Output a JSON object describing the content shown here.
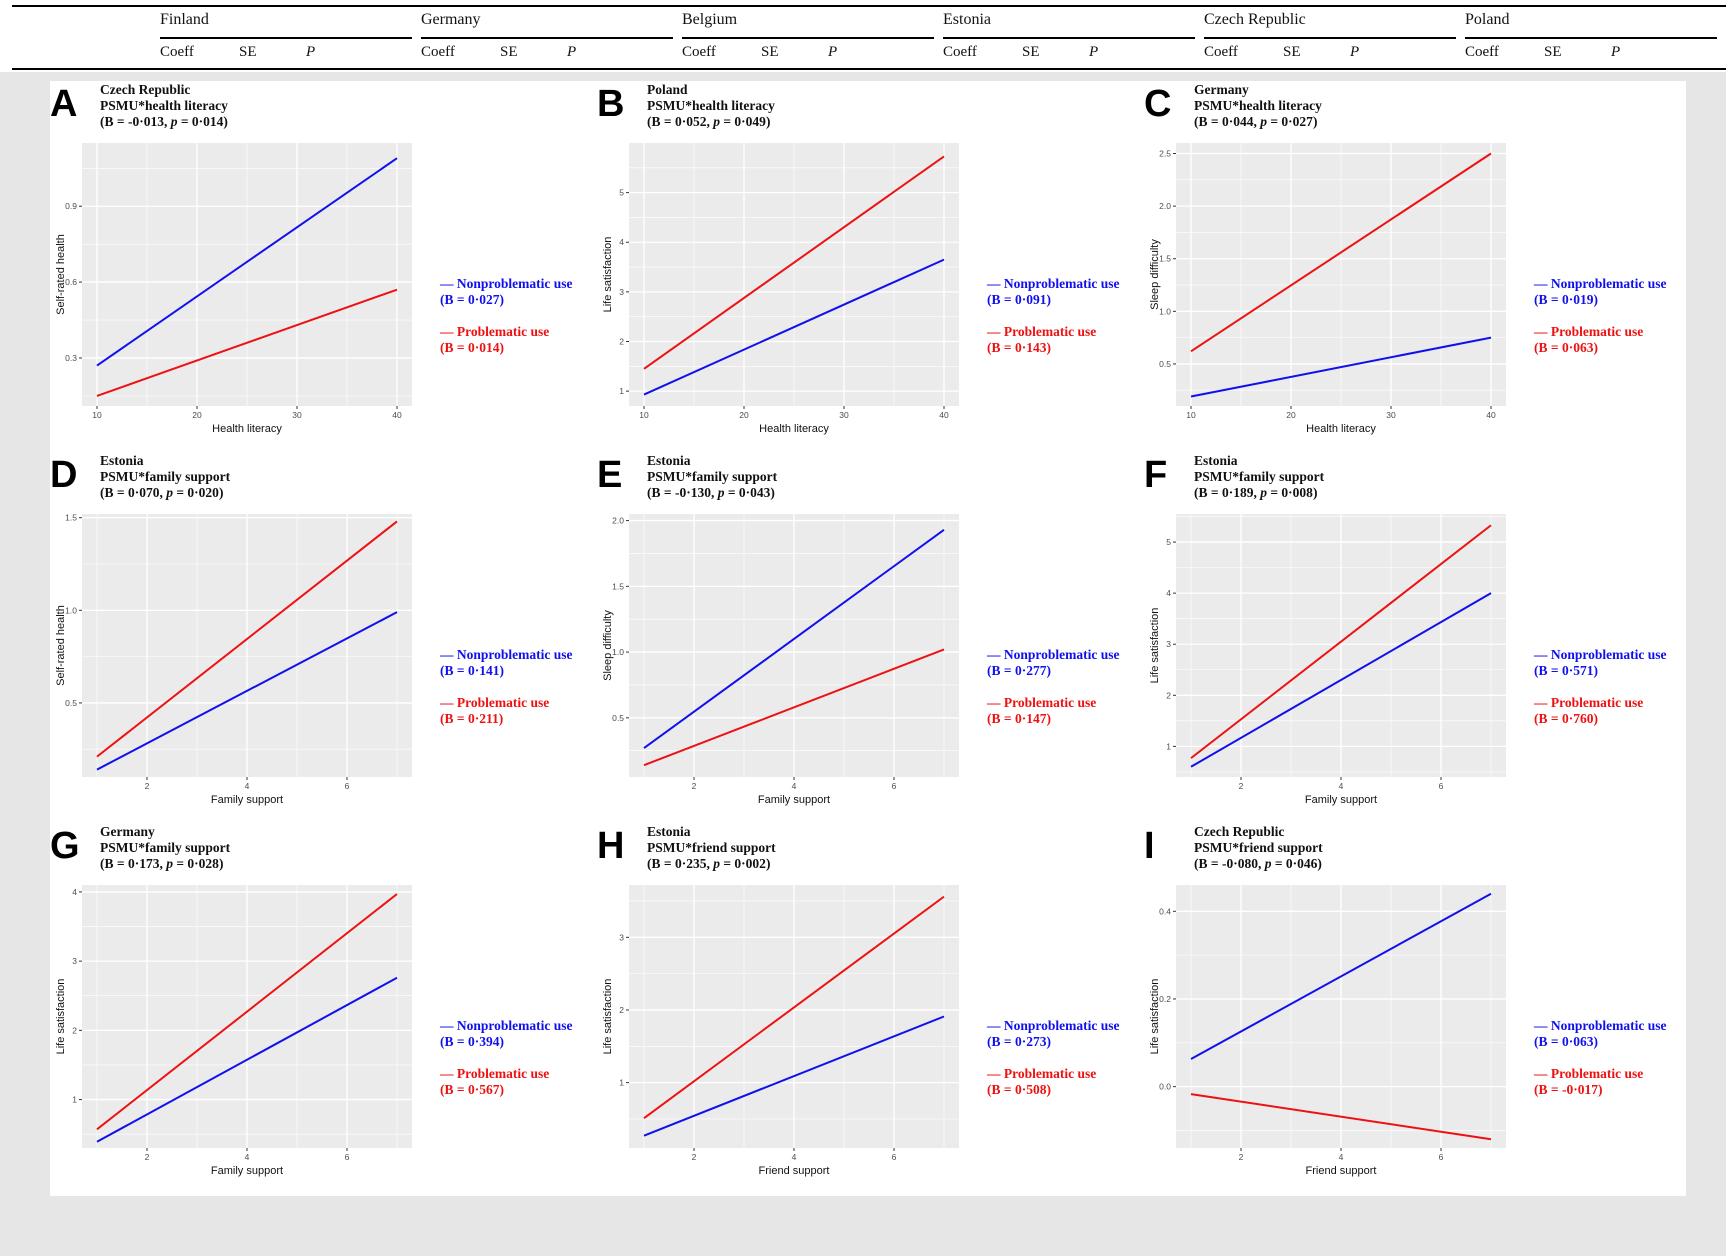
{
  "table": {
    "countries": [
      {
        "name": "Finland"
      },
      {
        "name": "Germany"
      },
      {
        "name": "Belgium"
      },
      {
        "name": "Estonia"
      },
      {
        "name": "Czech Republic"
      },
      {
        "name": "Poland"
      }
    ],
    "columns": [
      "Coeff",
      "SE",
      "P"
    ]
  },
  "colors": {
    "nonproblematic": "#1010ee",
    "problematic": "#ee1111",
    "plot_bg": "#ebebeb",
    "grid": "#ffffff",
    "tick_text": "#4d4d4d"
  },
  "legend": {
    "nonproblematic": "— Nonproblematic use",
    "problematic": "— Problematic use"
  },
  "chart_data": [
    {
      "letter": "A",
      "type": "line",
      "country": "Czech Republic",
      "interaction": "PSMU*health literacy",
      "stat_b": "-0·013",
      "stat_p": "0·014",
      "xlabel": "Health literacy",
      "ylabel": "Self-rated health",
      "xlim": [
        8.5,
        41.5
      ],
      "ylim": [
        0.11,
        1.15
      ],
      "xticks": [
        10,
        20,
        30,
        40
      ],
      "xtick_labels": [
        "10",
        "20",
        "30",
        "40"
      ],
      "yticks": [
        0.3,
        0.6,
        0.9
      ],
      "ytick_labels": [
        "0.3",
        "0.6",
        "0.9"
      ],
      "series": [
        {
          "name": "Nonproblematic use",
          "key": "nonproblematic",
          "b": "0·027",
          "x": [
            10,
            40
          ],
          "y": [
            0.27,
            1.09
          ]
        },
        {
          "name": "Problematic use",
          "key": "problematic",
          "b": "0·014",
          "x": [
            10,
            40
          ],
          "y": [
            0.15,
            0.57
          ]
        }
      ]
    },
    {
      "letter": "B",
      "type": "line",
      "country": "Poland",
      "interaction": "PSMU*health literacy",
      "stat_b": "0·052",
      "stat_p": "0·049",
      "xlabel": "Health literacy",
      "ylabel": "Life satisfaction",
      "xlim": [
        8.5,
        41.5
      ],
      "ylim": [
        0.7,
        6.0
      ],
      "xticks": [
        10,
        20,
        30,
        40
      ],
      "xtick_labels": [
        "10",
        "20",
        "30",
        "40"
      ],
      "yticks": [
        1,
        2,
        3,
        4,
        5
      ],
      "ytick_labels": [
        "1",
        "2",
        "3",
        "4",
        "5"
      ],
      "series": [
        {
          "name": "Nonproblematic use",
          "key": "nonproblematic",
          "b": "0·091",
          "x": [
            10,
            40
          ],
          "y": [
            0.93,
            3.65
          ]
        },
        {
          "name": "Problematic use",
          "key": "problematic",
          "b": "0·143",
          "x": [
            10,
            40
          ],
          "y": [
            1.45,
            5.73
          ]
        }
      ]
    },
    {
      "letter": "C",
      "type": "line",
      "country": "Germany",
      "interaction": "PSMU*health literacy",
      "stat_b": "0·044",
      "stat_p": "0·027",
      "xlabel": "Health literacy",
      "ylabel": "Sleep difficulty",
      "xlim": [
        8.5,
        41.5
      ],
      "ylim": [
        0.1,
        2.6
      ],
      "xticks": [
        10,
        20,
        30,
        40
      ],
      "xtick_labels": [
        "10",
        "20",
        "30",
        "40"
      ],
      "yticks": [
        0.5,
        1.0,
        1.5,
        2.0,
        2.5
      ],
      "ytick_labels": [
        "0.5",
        "1.0",
        "1.5",
        "2.0",
        "2.5"
      ],
      "series": [
        {
          "name": "Nonproblematic use",
          "key": "nonproblematic",
          "b": "0·019",
          "x": [
            10,
            40
          ],
          "y": [
            0.19,
            0.75
          ]
        },
        {
          "name": "Problematic use",
          "key": "problematic",
          "b": "0·063",
          "x": [
            10,
            40
          ],
          "y": [
            0.62,
            2.5
          ]
        }
      ]
    },
    {
      "letter": "D",
      "type": "line",
      "country": "Estonia",
      "interaction": "PSMU*family support",
      "stat_b": "0·070",
      "stat_p": "0·020",
      "xlabel": "Family support",
      "ylabel": "Self-rated health",
      "xlim": [
        0.7,
        7.3
      ],
      "ylim": [
        0.1,
        1.52
      ],
      "xticks": [
        2,
        4,
        6
      ],
      "xtick_labels": [
        "2",
        "4",
        "6"
      ],
      "yticks": [
        0.5,
        1.0,
        1.5
      ],
      "ytick_labels": [
        "0.5",
        "1.0",
        "1.5"
      ],
      "series": [
        {
          "name": "Nonproblematic use",
          "key": "nonproblematic",
          "b": "0·141",
          "x": [
            1,
            7
          ],
          "y": [
            0.14,
            0.99
          ]
        },
        {
          "name": "Problematic use",
          "key": "problematic",
          "b": "0·211",
          "x": [
            1,
            7
          ],
          "y": [
            0.21,
            1.48
          ]
        }
      ]
    },
    {
      "letter": "E",
      "type": "line",
      "country": "Estonia",
      "interaction": "PSMU*family support",
      "stat_b": "-0·130",
      "stat_p": "0·043",
      "xlabel": "Family support",
      "ylabel": "Sleep difficulty",
      "xlim": [
        0.7,
        7.3
      ],
      "ylim": [
        0.05,
        2.05
      ],
      "xticks": [
        2,
        4,
        6
      ],
      "xtick_labels": [
        "2",
        "4",
        "6"
      ],
      "yticks": [
        0.5,
        1.0,
        1.5,
        2.0
      ],
      "ytick_labels": [
        "0.5",
        "1.0",
        "1.5",
        "2.0"
      ],
      "series": [
        {
          "name": "Nonproblematic use",
          "key": "nonproblematic",
          "b": "0·277",
          "x": [
            1,
            7
          ],
          "y": [
            0.27,
            1.93
          ]
        },
        {
          "name": "Problematic use",
          "key": "problematic",
          "b": "0·147",
          "x": [
            1,
            7
          ],
          "y": [
            0.14,
            1.02
          ]
        }
      ]
    },
    {
      "letter": "F",
      "type": "line",
      "country": "Estonia",
      "interaction": "PSMU*family support",
      "stat_b": "0·189",
      "stat_p": "0·008",
      "xlabel": "Family support",
      "ylabel": "Life satisfaction",
      "xlim": [
        0.7,
        7.3
      ],
      "ylim": [
        0.4,
        5.55
      ],
      "xticks": [
        2,
        4,
        6
      ],
      "xtick_labels": [
        "2",
        "4",
        "6"
      ],
      "yticks": [
        1,
        2,
        3,
        4,
        5
      ],
      "ytick_labels": [
        "1",
        "2",
        "3",
        "4",
        "5"
      ],
      "series": [
        {
          "name": "Nonproblematic use",
          "key": "nonproblematic",
          "b": "0·571",
          "x": [
            1,
            7
          ],
          "y": [
            0.6,
            4.0
          ]
        },
        {
          "name": "Problematic use",
          "key": "problematic",
          "b": "0·760",
          "x": [
            1,
            7
          ],
          "y": [
            0.77,
            5.33
          ]
        }
      ]
    },
    {
      "letter": "G",
      "type": "line",
      "country": "Germany",
      "interaction": "PSMU*family support",
      "stat_b": "0·173",
      "stat_p": "0·028",
      "xlabel": "Family support",
      "ylabel": "Life satisfaction",
      "xlim": [
        0.7,
        7.3
      ],
      "ylim": [
        0.3,
        4.1
      ],
      "xticks": [
        2,
        4,
        6
      ],
      "xtick_labels": [
        "2",
        "4",
        "6"
      ],
      "yticks": [
        1,
        2,
        3,
        4
      ],
      "ytick_labels": [
        "1",
        "2",
        "3",
        "4"
      ],
      "series": [
        {
          "name": "Nonproblematic use",
          "key": "nonproblematic",
          "b": "0·394",
          "x": [
            1,
            7
          ],
          "y": [
            0.39,
            2.76
          ]
        },
        {
          "name": "Problematic use",
          "key": "problematic",
          "b": "0·567",
          "x": [
            1,
            7
          ],
          "y": [
            0.57,
            3.97
          ]
        }
      ]
    },
    {
      "letter": "H",
      "type": "line",
      "country": "Estonia",
      "interaction": "PSMU*friend support",
      "stat_b": "0·235",
      "stat_p": "0·002",
      "xlabel": "Friend support",
      "ylabel": "Life satisfaction",
      "xlim": [
        0.7,
        7.3
      ],
      "ylim": [
        0.1,
        3.72
      ],
      "xticks": [
        2,
        4,
        6
      ],
      "xtick_labels": [
        "2",
        "4",
        "6"
      ],
      "yticks": [
        1,
        2,
        3
      ],
      "ytick_labels": [
        "1",
        "2",
        "3"
      ],
      "series": [
        {
          "name": "Nonproblematic use",
          "key": "nonproblematic",
          "b": "0·273",
          "x": [
            1,
            7
          ],
          "y": [
            0.27,
            1.91
          ]
        },
        {
          "name": "Problematic use",
          "key": "problematic",
          "b": "0·508",
          "x": [
            1,
            7
          ],
          "y": [
            0.51,
            3.56
          ]
        }
      ]
    },
    {
      "letter": "I",
      "type": "line",
      "country": "Czech Republic",
      "interaction": "PSMU*friend support",
      "stat_b": "-0·080",
      "stat_p": "0·046",
      "xlabel": "Friend support",
      "ylabel": "Life satisfaction",
      "xlim": [
        0.7,
        7.3
      ],
      "ylim": [
        -0.14,
        0.46
      ],
      "xticks": [
        2,
        4,
        6
      ],
      "xtick_labels": [
        "2",
        "4",
        "6"
      ],
      "yticks": [
        0.0,
        0.2,
        0.4
      ],
      "ytick_labels": [
        "0.0",
        "0.2",
        "0.4"
      ],
      "series": [
        {
          "name": "Nonproblematic use",
          "key": "nonproblematic",
          "b": "0·063",
          "x": [
            1,
            7
          ],
          "y": [
            0.063,
            0.44
          ]
        },
        {
          "name": "Problematic use",
          "key": "problematic",
          "b": "-0·017",
          "x": [
            1,
            7
          ],
          "y": [
            -0.017,
            -0.12
          ]
        }
      ]
    }
  ]
}
